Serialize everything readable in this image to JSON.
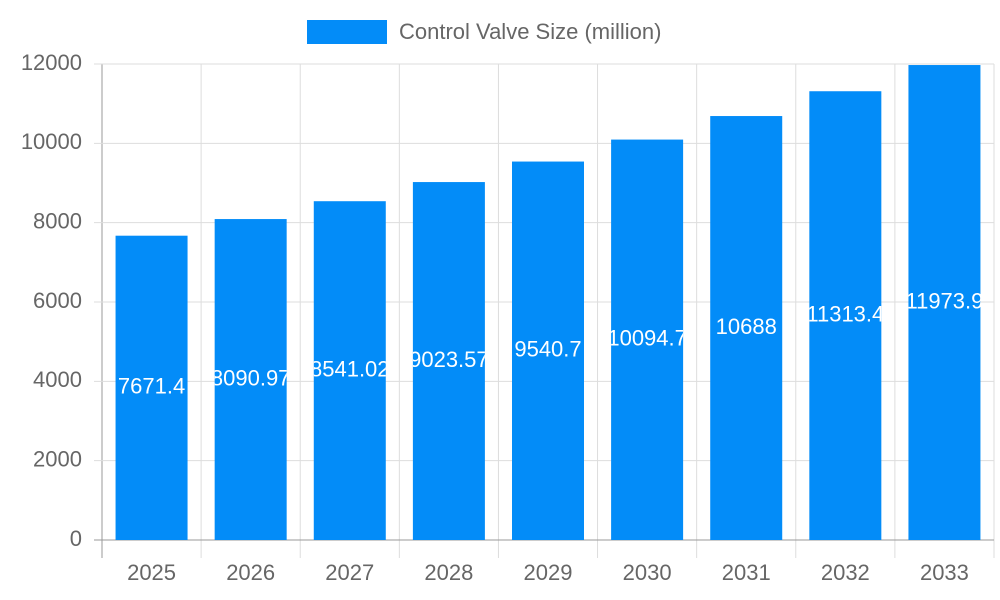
{
  "chart_data": {
    "type": "bar",
    "categories": [
      "2025",
      "2026",
      "2027",
      "2028",
      "2029",
      "2030",
      "2031",
      "2032",
      "2033"
    ],
    "series": [
      {
        "name": "Control Valve Size (million)",
        "color": "#038cf8",
        "values": [
          7671.4,
          8090.97,
          8541.02,
          9023.57,
          9540.7,
          10094.7,
          10688,
          11313.4,
          11973.9
        ]
      }
    ],
    "ylim": [
      0,
      12000
    ],
    "yticks": [
      0,
      2000,
      4000,
      6000,
      8000,
      10000,
      12000
    ],
    "grid": true,
    "legend": "top"
  }
}
